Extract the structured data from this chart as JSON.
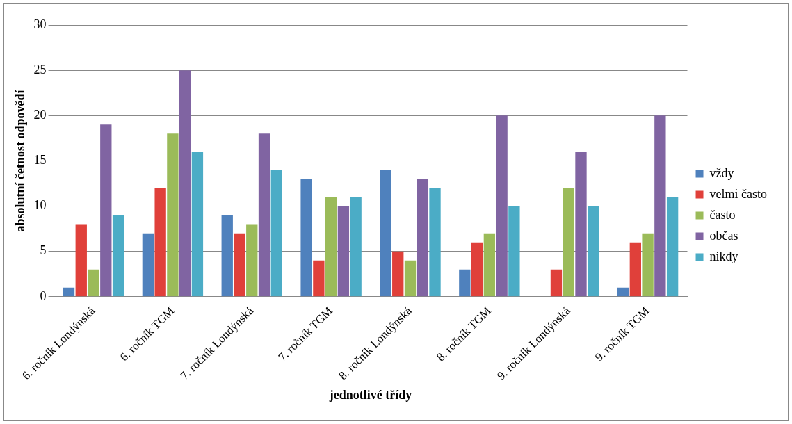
{
  "chart_data": {
    "type": "bar",
    "xlabel": "jednotlivé třídy",
    "ylabel": "absolutní četnost odpovědí",
    "categories": [
      "6. ročník Londýnská",
      "6. ročník TGM",
      "7. ročník Londýnská",
      "7. ročník TGM",
      "8. ročník Londýnská",
      "8. ročník TGM",
      "9. ročník Londýnská",
      "9. ročník TGM"
    ],
    "series": [
      {
        "name": "vždy",
        "color": "#4f81bd",
        "values": [
          1,
          7,
          9,
          13,
          14,
          3,
          0,
          1
        ]
      },
      {
        "name": "velmi často",
        "color": "#e0403a",
        "values": [
          8,
          12,
          7,
          4,
          5,
          6,
          3,
          6
        ]
      },
      {
        "name": "často",
        "color": "#9bbb59",
        "values": [
          3,
          18,
          8,
          11,
          4,
          7,
          12,
          7
        ]
      },
      {
        "name": "občas",
        "color": "#8064a2",
        "values": [
          19,
          25,
          18,
          10,
          13,
          20,
          16,
          20
        ]
      },
      {
        "name": "nikdy",
        "color": "#4bacc6",
        "values": [
          9,
          16,
          14,
          11,
          12,
          10,
          10,
          11
        ]
      }
    ],
    "ylim": [
      0,
      30
    ],
    "yticks": [
      0,
      5,
      10,
      15,
      20,
      25,
      30
    ],
    "grid": "y",
    "legend": "right"
  }
}
